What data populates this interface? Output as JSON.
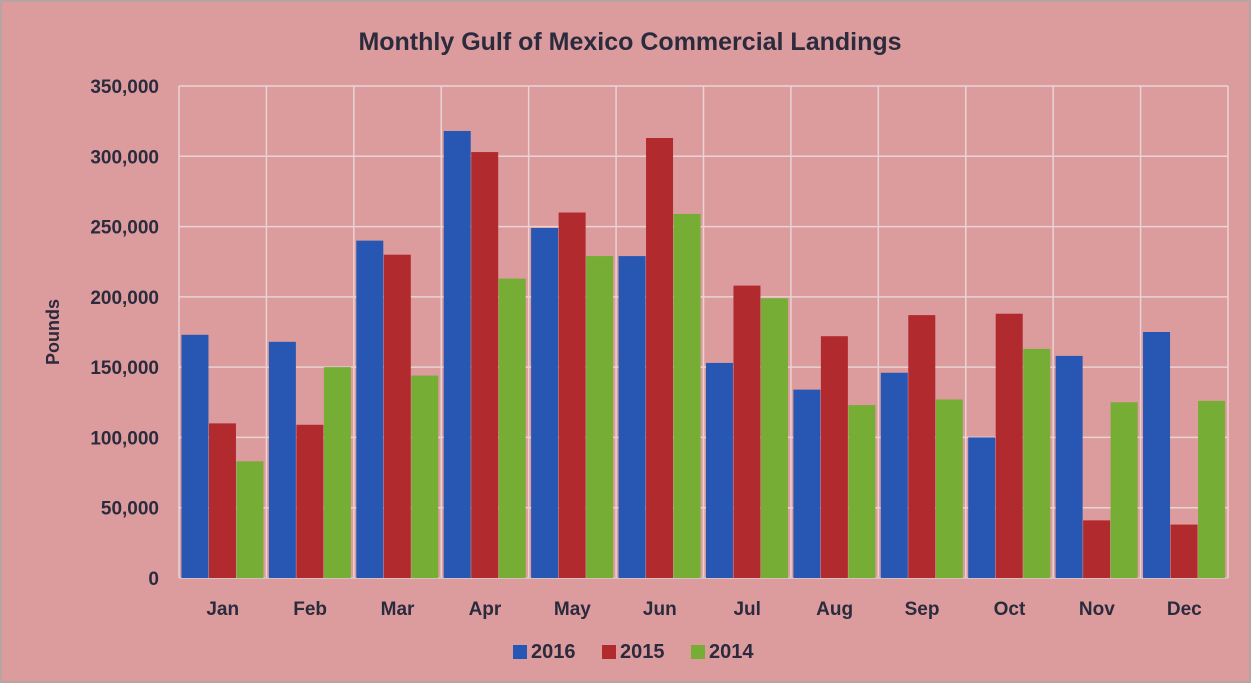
{
  "chart_data": {
    "type": "bar",
    "title": "Monthly Gulf of Mexico Commercial Landings",
    "xlabel": "",
    "ylabel": "Pounds",
    "ylim": [
      0,
      350000
    ],
    "yticks": [
      "0",
      "50,000",
      "100,000",
      "150,000",
      "200,000",
      "250,000",
      "300,000",
      "350,000"
    ],
    "ytick_values": [
      0,
      50000,
      100000,
      150000,
      200000,
      250000,
      300000,
      350000
    ],
    "grid": true,
    "legend_position": "bottom",
    "categories": [
      "Jan",
      "Feb",
      "Mar",
      "Apr",
      "May",
      "Jun",
      "Jul",
      "Aug",
      "Sep",
      "Oct",
      "Nov",
      "Dec"
    ],
    "series": [
      {
        "name": "2016",
        "color": "#2756b3",
        "values": [
          173000,
          168000,
          240000,
          318000,
          249000,
          229000,
          153000,
          134000,
          146000,
          100000,
          158000,
          175000
        ]
      },
      {
        "name": "2015",
        "color": "#b02a2e",
        "values": [
          110000,
          109000,
          230000,
          303000,
          260000,
          313000,
          208000,
          172000,
          187000,
          188000,
          41000,
          38000
        ]
      },
      {
        "name": "2014",
        "color": "#76ad34",
        "values": [
          83000,
          150000,
          144000,
          213000,
          229000,
          259000,
          199000,
          123000,
          127000,
          163000,
          125000,
          126000
        ]
      }
    ]
  }
}
